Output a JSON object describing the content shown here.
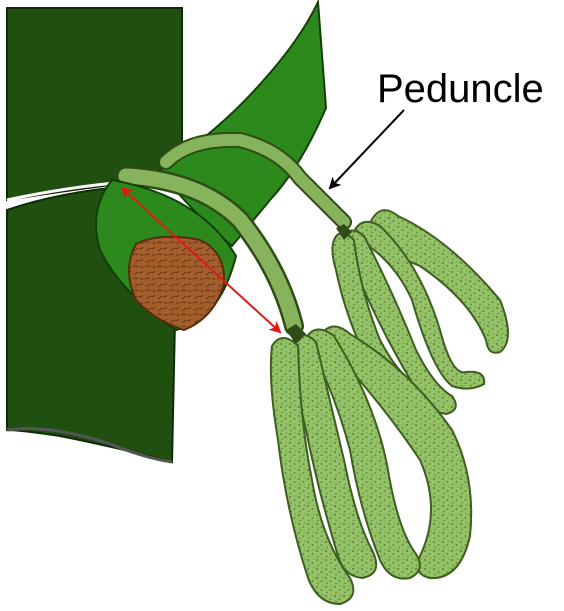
{
  "diagram": {
    "labels": {
      "peduncle": "Peduncle"
    },
    "colors": {
      "stem_dark": "#1F5010",
      "leaf_green": "#2C8A1C",
      "leaf_inner": "#3A9A26",
      "stalk_light": "#86B35C",
      "catkin_fill": "#95C268",
      "catkin_dots": "#5E8E38",
      "bud_brown": "#A35E2C",
      "pointer_arrow": "#000000",
      "measure_arrow": "#E01A1A"
    }
  }
}
